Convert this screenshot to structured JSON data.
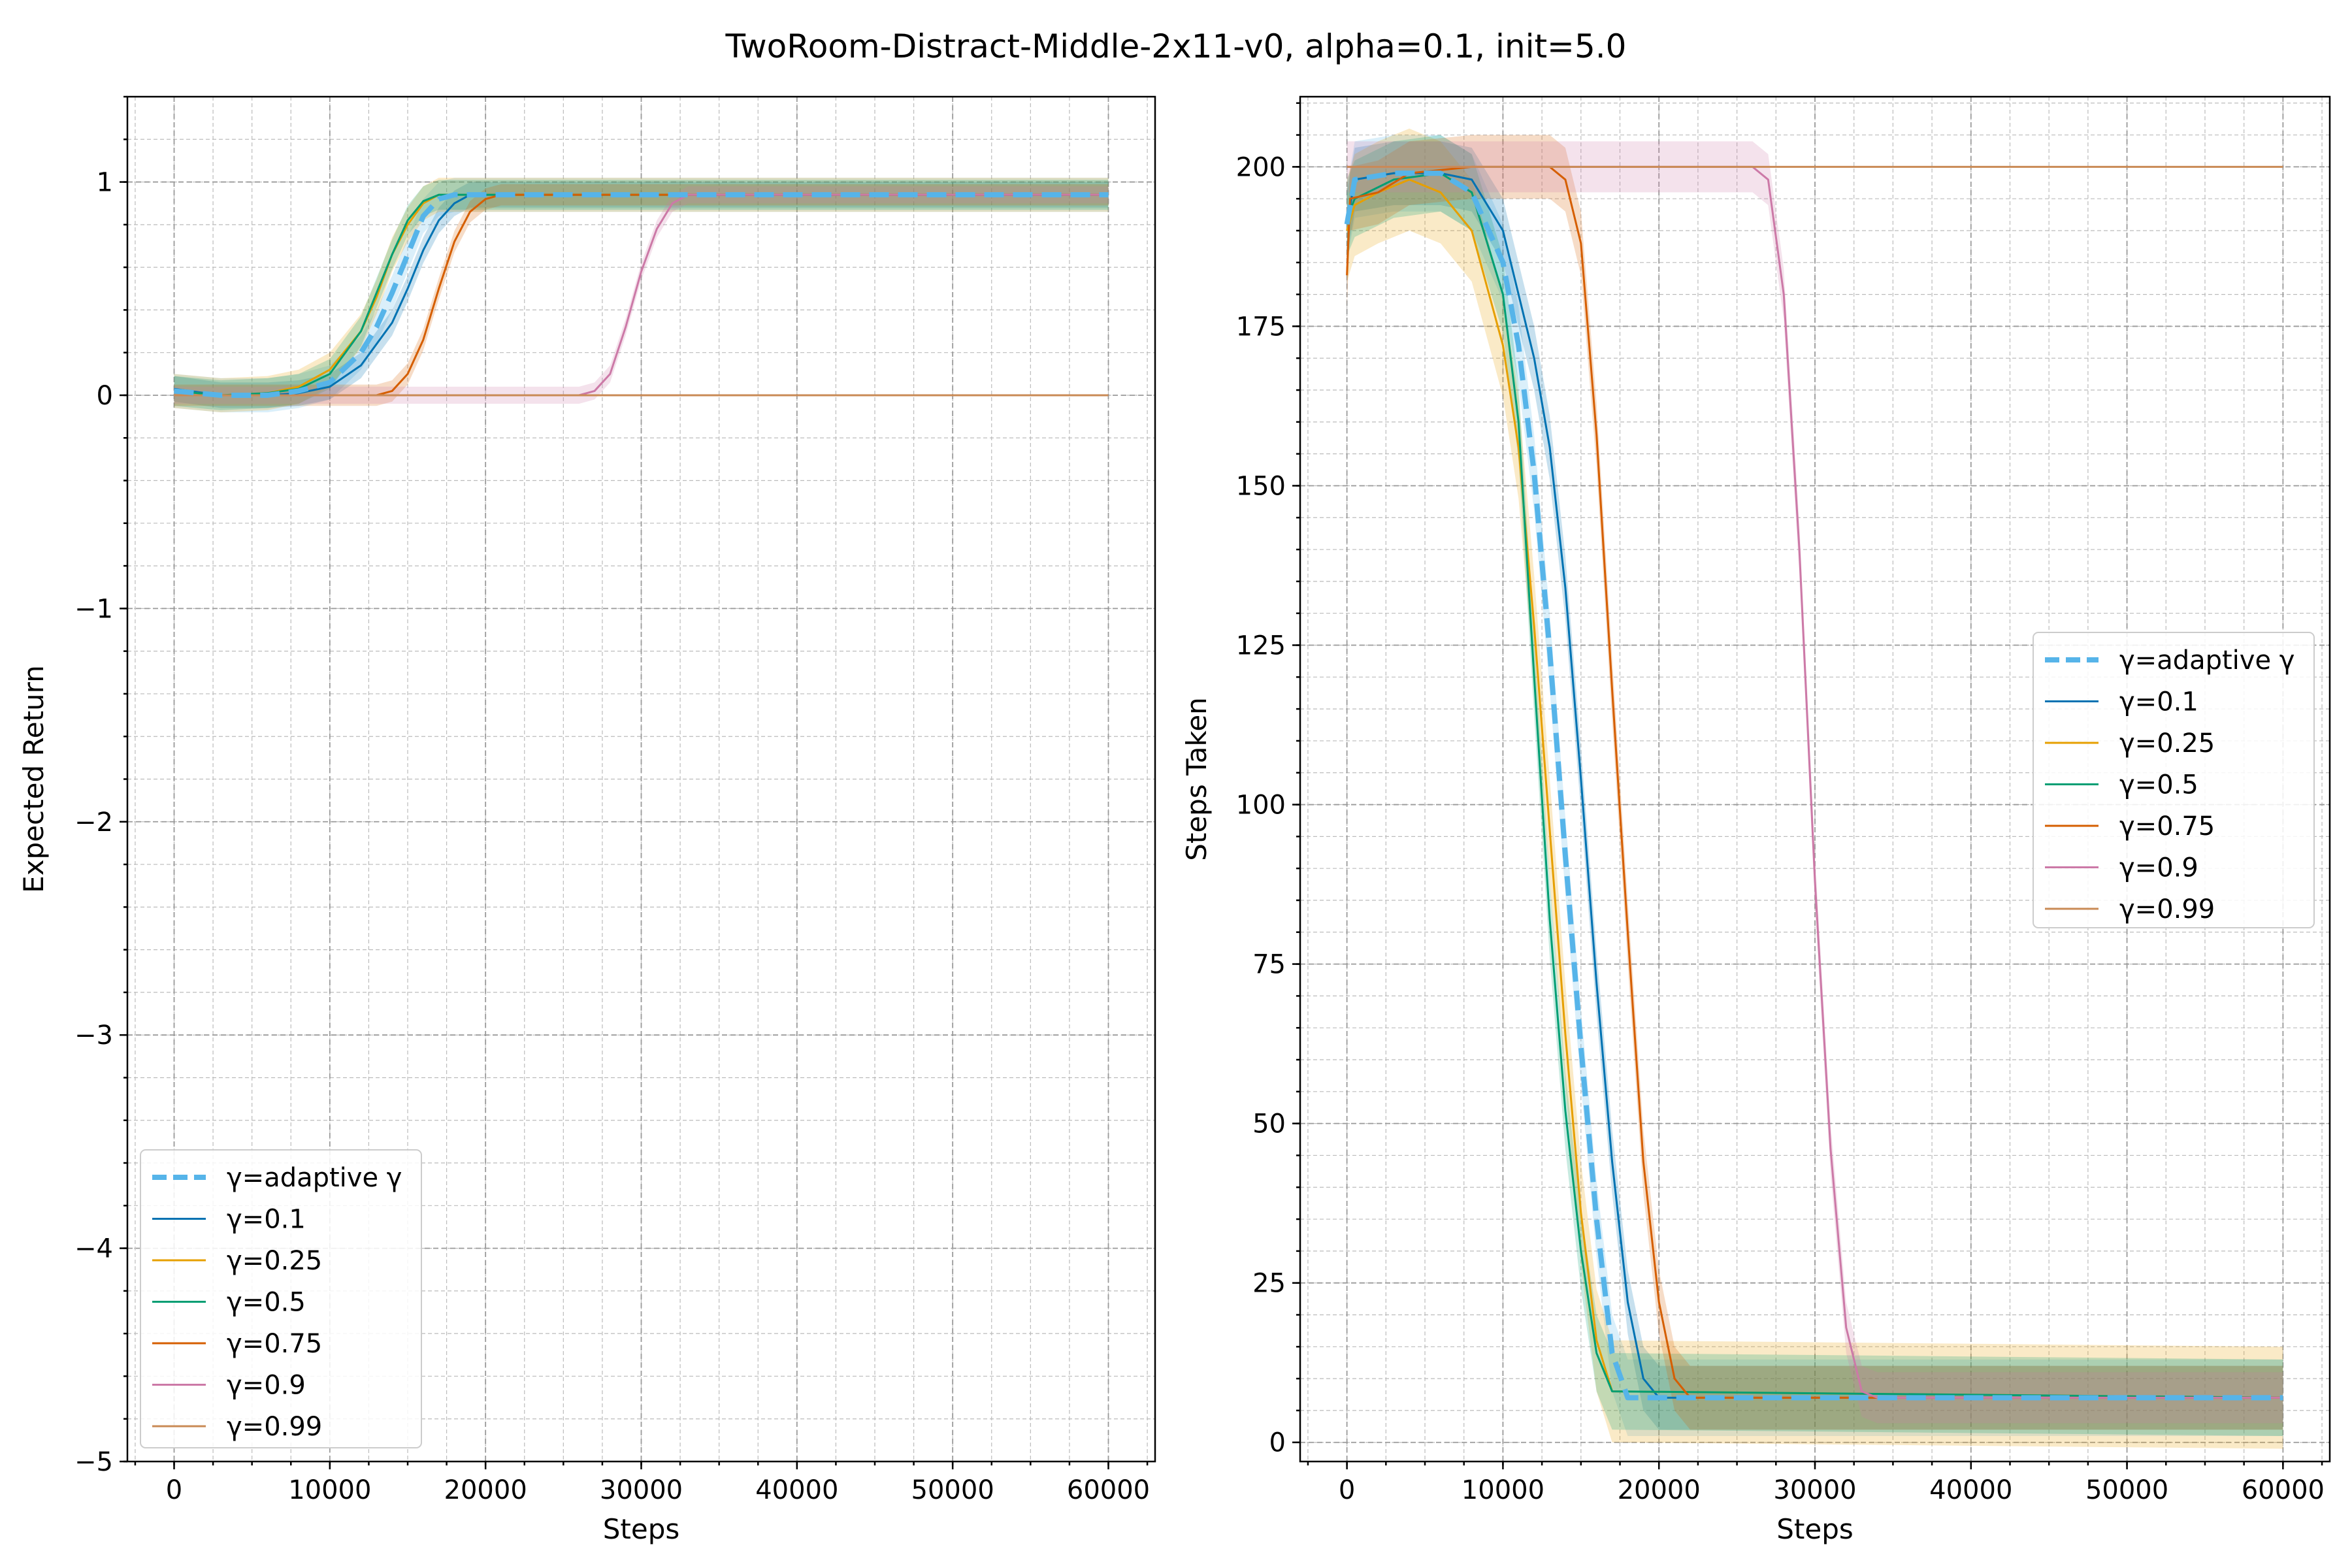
{
  "title": "TwoRoom-Distract-Middle-2x11-v0, alpha=0.1, init=5.0",
  "colors": {
    "adaptive": "#56b4e9",
    "g0.1": "#0072b2",
    "g0.25": "#e69f00",
    "g0.5": "#009e73",
    "g0.75": "#d55e00",
    "g0.9": "#cc79a7",
    "g0.99": "#c98a55",
    "grid": "#b0b0b0"
  },
  "chart_data": [
    {
      "type": "line",
      "xlabel": "Steps",
      "ylabel": "Expected Return",
      "xlim": [
        -3000,
        63000
      ],
      "ylim": [
        -5,
        1.4
      ],
      "x_ticks": [
        0,
        10000,
        20000,
        30000,
        40000,
        50000,
        60000
      ],
      "y_ticks": [
        -5,
        -4,
        -3,
        -2,
        -1,
        0,
        1
      ],
      "y_tick_labels": [
        "−5",
        "−4",
        "−3",
        "−2",
        "−1",
        "0",
        "1"
      ],
      "grid": true,
      "legend_position": "lower-left",
      "series": [
        {
          "name": "γ=adaptive γ",
          "color": "#56b4e9",
          "dashed": true,
          "width": 8,
          "band": 0.08,
          "points": [
            [
              0,
              0.02
            ],
            [
              3000,
              0
            ],
            [
              6000,
              0
            ],
            [
              8000,
              0.02
            ],
            [
              10000,
              0.06
            ],
            [
              12000,
              0.2
            ],
            [
              13000,
              0.32
            ],
            [
              14000,
              0.48
            ],
            [
              15000,
              0.66
            ],
            [
              16000,
              0.84
            ],
            [
              17000,
              0.92
            ],
            [
              18000,
              0.94
            ],
            [
              60000,
              0.94
            ]
          ]
        },
        {
          "name": "γ=0.1",
          "color": "#0072b2",
          "width": 3,
          "band": 0.06,
          "points": [
            [
              0,
              0.03
            ],
            [
              3000,
              0
            ],
            [
              6000,
              0
            ],
            [
              8000,
              0.01
            ],
            [
              10000,
              0.04
            ],
            [
              12000,
              0.14
            ],
            [
              14000,
              0.34
            ],
            [
              15000,
              0.5
            ],
            [
              16000,
              0.68
            ],
            [
              17000,
              0.82
            ],
            [
              18000,
              0.9
            ],
            [
              19000,
              0.94
            ],
            [
              60000,
              0.94
            ]
          ]
        },
        {
          "name": "γ=0.25",
          "color": "#e69f00",
          "width": 3,
          "band": 0.08,
          "points": [
            [
              0,
              0.02
            ],
            [
              3000,
              0
            ],
            [
              6000,
              0.01
            ],
            [
              8000,
              0.04
            ],
            [
              10000,
              0.12
            ],
            [
              12000,
              0.3
            ],
            [
              13000,
              0.46
            ],
            [
              14000,
              0.66
            ],
            [
              15000,
              0.8
            ],
            [
              16000,
              0.9
            ],
            [
              17000,
              0.94
            ],
            [
              60000,
              0.94
            ]
          ]
        },
        {
          "name": "γ=0.5",
          "color": "#009e73",
          "width": 3,
          "band": 0.07,
          "points": [
            [
              0,
              0.02
            ],
            [
              3000,
              0
            ],
            [
              6000,
              0.01
            ],
            [
              8000,
              0.03
            ],
            [
              10000,
              0.1
            ],
            [
              12000,
              0.3
            ],
            [
              13000,
              0.48
            ],
            [
              14000,
              0.66
            ],
            [
              15000,
              0.82
            ],
            [
              16000,
              0.91
            ],
            [
              17000,
              0.94
            ],
            [
              60000,
              0.94
            ]
          ]
        },
        {
          "name": "γ=0.75",
          "color": "#d55e00",
          "width": 3,
          "band": 0.05,
          "points": [
            [
              0,
              0
            ],
            [
              13000,
              0
            ],
            [
              14000,
              0.02
            ],
            [
              15000,
              0.1
            ],
            [
              16000,
              0.26
            ],
            [
              17000,
              0.5
            ],
            [
              18000,
              0.72
            ],
            [
              19000,
              0.86
            ],
            [
              20000,
              0.92
            ],
            [
              21000,
              0.94
            ],
            [
              60000,
              0.94
            ]
          ]
        },
        {
          "name": "γ=0.9",
          "color": "#cc79a7",
          "width": 3,
          "band": 0.04,
          "points": [
            [
              0,
              0
            ],
            [
              26000,
              0
            ],
            [
              27000,
              0.02
            ],
            [
              28000,
              0.1
            ],
            [
              29000,
              0.32
            ],
            [
              30000,
              0.58
            ],
            [
              31000,
              0.78
            ],
            [
              32000,
              0.9
            ],
            [
              33000,
              0.94
            ],
            [
              60000,
              0.94
            ]
          ]
        },
        {
          "name": "γ=0.99",
          "color": "#c98a55",
          "width": 3,
          "band": 0,
          "points": [
            [
              0,
              0
            ],
            [
              60000,
              0
            ]
          ]
        }
      ]
    },
    {
      "type": "line",
      "xlabel": "Steps",
      "ylabel": "Steps Taken",
      "xlim": [
        -3000,
        63000
      ],
      "ylim": [
        -3,
        211
      ],
      "x_ticks": [
        0,
        10000,
        20000,
        30000,
        40000,
        50000,
        60000
      ],
      "y_ticks": [
        0,
        25,
        50,
        75,
        100,
        125,
        150,
        175,
        200
      ],
      "y_tick_labels": [
        "0",
        "25",
        "50",
        "75",
        "100",
        "125",
        "150",
        "175",
        "200"
      ],
      "grid": true,
      "legend_position": "center-right",
      "series": [
        {
          "name": "γ=adaptive γ",
          "color": "#56b4e9",
          "dashed": true,
          "width": 8,
          "band": 6,
          "points": [
            [
              0,
              191
            ],
            [
              500,
              198
            ],
            [
              3000,
              199
            ],
            [
              6000,
              199
            ],
            [
              8000,
              196
            ],
            [
              10000,
              185
            ],
            [
              11000,
              172
            ],
            [
              12000,
              152
            ],
            [
              13000,
              124
            ],
            [
              14000,
              92
            ],
            [
              15000,
              62
            ],
            [
              16000,
              35
            ],
            [
              17000,
              14
            ],
            [
              18000,
              7
            ],
            [
              60000,
              7
            ]
          ]
        },
        {
          "name": "γ=0.1",
          "color": "#0072b2",
          "width": 3,
          "band": 5,
          "points": [
            [
              0,
              191
            ],
            [
              500,
              198
            ],
            [
              3000,
              199
            ],
            [
              6000,
              199
            ],
            [
              8000,
              198
            ],
            [
              10000,
              190
            ],
            [
              12000,
              170
            ],
            [
              13000,
              156
            ],
            [
              14000,
              134
            ],
            [
              15000,
              104
            ],
            [
              16000,
              72
            ],
            [
              17000,
              44
            ],
            [
              18000,
              22
            ],
            [
              19000,
              10
            ],
            [
              20000,
              7
            ],
            [
              60000,
              7
            ]
          ]
        },
        {
          "name": "γ=0.25",
          "color": "#e69f00",
          "width": 3,
          "band": 8,
          "points": [
            [
              0,
              190
            ],
            [
              500,
              194
            ],
            [
              2000,
              196
            ],
            [
              4000,
              198
            ],
            [
              6000,
              196
            ],
            [
              8000,
              190
            ],
            [
              10000,
              172
            ],
            [
              11000,
              156
            ],
            [
              12000,
              128
            ],
            [
              13000,
              96
            ],
            [
              14000,
              64
            ],
            [
              15000,
              36
            ],
            [
              16000,
              16
            ],
            [
              17000,
              8
            ],
            [
              60000,
              7
            ]
          ]
        },
        {
          "name": "γ=0.5",
          "color": "#009e73",
          "width": 3,
          "band": 6,
          "points": [
            [
              0,
              192
            ],
            [
              500,
              195
            ],
            [
              3000,
              198
            ],
            [
              6000,
              199
            ],
            [
              8000,
              196
            ],
            [
              10000,
              180
            ],
            [
              11000,
              160
            ],
            [
              12000,
              120
            ],
            [
              13000,
              82
            ],
            [
              14000,
              52
            ],
            [
              15000,
              30
            ],
            [
              16000,
              14
            ],
            [
              17000,
              8
            ],
            [
              60000,
              7
            ]
          ]
        },
        {
          "name": "γ=0.75",
          "color": "#d55e00",
          "width": 3,
          "band": 5,
          "points": [
            [
              0,
              183
            ],
            [
              200,
              195
            ],
            [
              2000,
              196
            ],
            [
              4000,
              199
            ],
            [
              8000,
              200
            ],
            [
              13000,
              200
            ],
            [
              14000,
              198
            ],
            [
              15000,
              188
            ],
            [
              16000,
              158
            ],
            [
              17000,
              118
            ],
            [
              18000,
              80
            ],
            [
              19000,
              44
            ],
            [
              20000,
              22
            ],
            [
              21000,
              10
            ],
            [
              22000,
              7
            ],
            [
              60000,
              7
            ]
          ]
        },
        {
          "name": "γ=0.9",
          "color": "#cc79a7",
          "width": 3,
          "band": 4,
          "points": [
            [
              0,
              200
            ],
            [
              26000,
              200
            ],
            [
              27000,
              198
            ],
            [
              28000,
              180
            ],
            [
              29000,
              140
            ],
            [
              30000,
              88
            ],
            [
              31000,
              46
            ],
            [
              32000,
              18
            ],
            [
              33000,
              8
            ],
            [
              34000,
              7
            ],
            [
              60000,
              7
            ]
          ]
        },
        {
          "name": "γ=0.99",
          "color": "#c98a55",
          "width": 3,
          "band": 0,
          "points": [
            [
              0,
              200
            ],
            [
              60000,
              200
            ]
          ]
        }
      ]
    }
  ]
}
